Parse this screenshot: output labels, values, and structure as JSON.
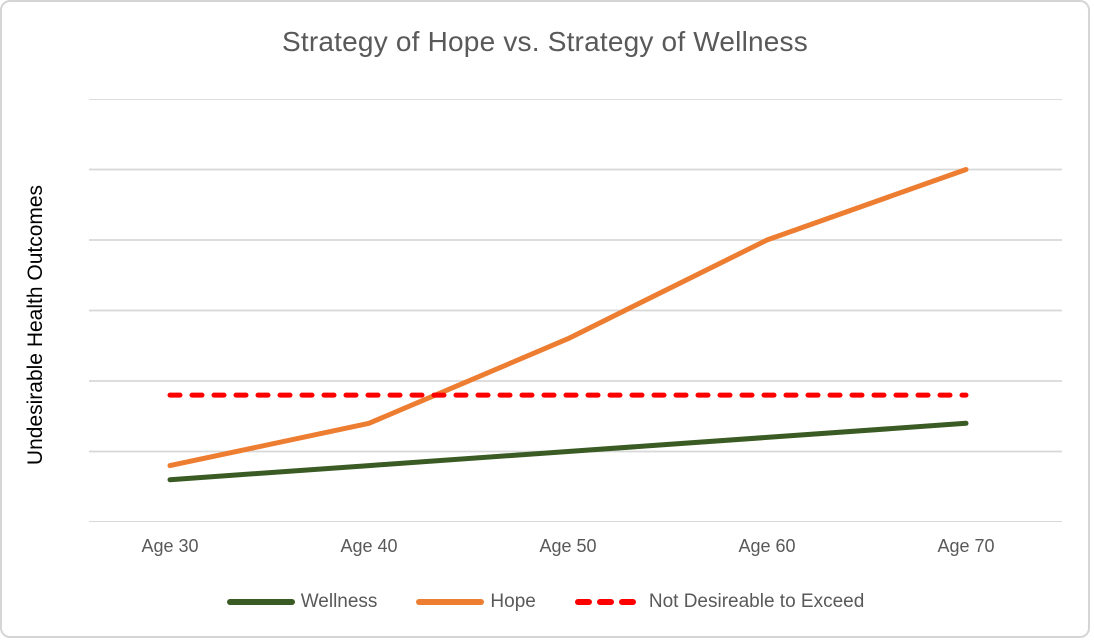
{
  "title": "Strategy of Hope vs. Strategy of Wellness",
  "chart_data": {
    "type": "line",
    "title": "Strategy of Hope vs. Strategy of Wellness",
    "categories": [
      "Age 30",
      "Age 40",
      "Age 50",
      "Age 60",
      "Age 70"
    ],
    "series": [
      {
        "name": "Wellness",
        "values": [
          0.6,
          0.8,
          1.0,
          1.2,
          1.4
        ],
        "color": "#3B5B24",
        "style": "solid"
      },
      {
        "name": "Hope",
        "values": [
          0.8,
          1.4,
          2.6,
          4.0,
          5.0
        ],
        "color": "#ED7D31",
        "style": "solid"
      },
      {
        "name": "Not Desireable to Exceed",
        "values": [
          1.8,
          1.8,
          1.8,
          1.8,
          1.8
        ],
        "color": "#FF0000",
        "style": "dashed"
      }
    ],
    "xlabel": "",
    "ylabel": "Undesirable Health Outcomes",
    "ylim": [
      0,
      6
    ],
    "y_gridline_step": 1,
    "y_tick_labels_shown": false,
    "grid": true,
    "legend_position": "bottom"
  },
  "colors": {
    "title_text": "#595959",
    "axis_text": "#595959",
    "y_label_text": "#000000",
    "gridline": "#D8D8D8",
    "frame_border": "#D5D5D5",
    "background": "#FFFFFF"
  }
}
